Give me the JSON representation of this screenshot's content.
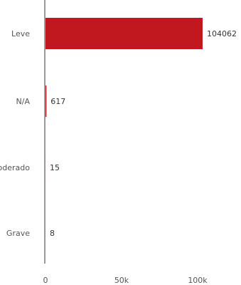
{
  "chart_data": {
    "type": "bar",
    "orientation": "horizontal",
    "categories": [
      "Leve",
      "N/A",
      "Moderado",
      "Grave"
    ],
    "values": [
      104062,
      617,
      15,
      8
    ],
    "value_labels": [
      "104062",
      "617",
      "15",
      "8"
    ],
    "xlim": [
      0,
      104062
    ],
    "x_ticks": [
      0,
      50000,
      100000
    ],
    "x_tick_labels": [
      "0",
      "50k",
      "100k"
    ],
    "bar_color": "#c0181e",
    "axis_color": "#333333",
    "grid": false,
    "legend": "none"
  }
}
